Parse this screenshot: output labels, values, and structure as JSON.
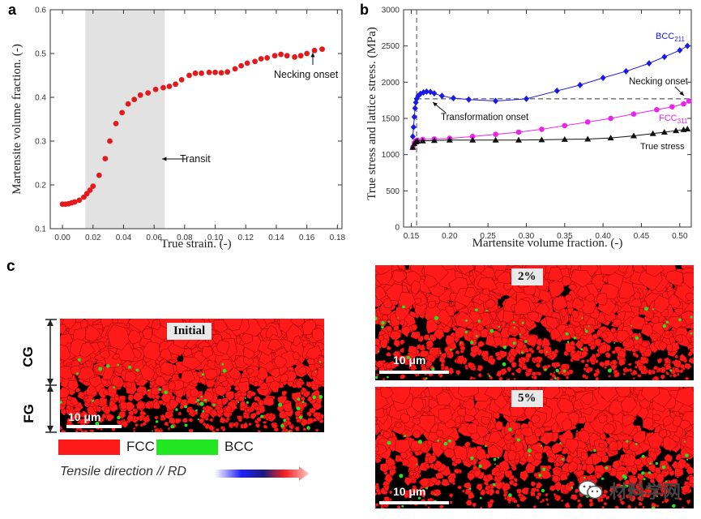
{
  "panels": {
    "a": "a",
    "b": "b",
    "c": "c"
  },
  "colors": {
    "fcc": "#ff1a1a",
    "bcc": "#22e622",
    "marker_red": "#e31a1c",
    "marker_blue": "#1a1ae6",
    "marker_magenta": "#ee22ee",
    "marker_black": "#111111"
  },
  "chart_data": [
    {
      "type": "scatter",
      "panel": "a",
      "xlabel": "True strain. (-)",
      "ylabel": "Martensite volume fraction. (-)",
      "xlim": [
        -0.008,
        0.183
      ],
      "ylim": [
        0.1,
        0.6
      ],
      "xticks": [
        0.0,
        0.02,
        0.04,
        0.06,
        0.08,
        0.1,
        0.12,
        0.14,
        0.16,
        0.18
      ],
      "xtick_labels": [
        "0.00",
        "0.02",
        "0.04",
        "0.06",
        "0.08",
        "0.10",
        "0.12",
        "0.14",
        "0.16",
        "0.18"
      ],
      "yticks": [
        0.1,
        0.2,
        0.3,
        0.4,
        0.5,
        0.6
      ],
      "ytick_labels": [
        "0.1",
        "0.2",
        "0.3",
        "0.4",
        "0.5",
        "0.6"
      ],
      "shaded_region": [
        0.015,
        0.067
      ],
      "annotations": {
        "transit": "Transit",
        "necking": "Necking onset"
      },
      "x": [
        0.0,
        0.002,
        0.004,
        0.006,
        0.008,
        0.011,
        0.014,
        0.016,
        0.018,
        0.02,
        0.024,
        0.028,
        0.031,
        0.035,
        0.039,
        0.043,
        0.047,
        0.051,
        0.056,
        0.061,
        0.066,
        0.07,
        0.074,
        0.078,
        0.083,
        0.087,
        0.091,
        0.096,
        0.1,
        0.104,
        0.108,
        0.113,
        0.117,
        0.121,
        0.126,
        0.13,
        0.134,
        0.139,
        0.143,
        0.147,
        0.152,
        0.156,
        0.16,
        0.165,
        0.17
      ],
      "y": [
        0.156,
        0.156,
        0.157,
        0.159,
        0.161,
        0.165,
        0.172,
        0.18,
        0.188,
        0.197,
        0.222,
        0.26,
        0.3,
        0.34,
        0.365,
        0.385,
        0.395,
        0.405,
        0.41,
        0.418,
        0.422,
        0.425,
        0.43,
        0.44,
        0.45,
        0.455,
        0.455,
        0.457,
        0.457,
        0.456,
        0.458,
        0.465,
        0.472,
        0.478,
        0.482,
        0.488,
        0.49,
        0.495,
        0.498,
        0.495,
        0.492,
        0.495,
        0.5,
        0.507,
        0.51
      ]
    },
    {
      "type": "line",
      "panel": "b",
      "xlabel": "Martensite volume fraction. (-)",
      "ylabel": "True stress and lattice stress. (MPa)",
      "xlim": [
        0.14,
        0.515
      ],
      "ylim": [
        0,
        3000
      ],
      "xticks": [
        0.15,
        0.2,
        0.25,
        0.3,
        0.35,
        0.4,
        0.45,
        0.5
      ],
      "xtick_labels": [
        "0.15",
        "0.20",
        "0.25",
        "0.30",
        "0.35",
        "0.40",
        "0.45",
        "0.50"
      ],
      "yticks": [
        0,
        500,
        1000,
        1500,
        2000,
        2500,
        3000
      ],
      "ytick_labels": [
        "0",
        "500",
        "1000",
        "1500",
        "2000",
        "2500",
        "3000"
      ],
      "dashed_vertical_x": 0.157,
      "dashed_horizontal_y": 1770,
      "annotations": {
        "necking": "Necking onset",
        "transformation": "Transformation onset",
        "true_stress": "True stress"
      },
      "series": [
        {
          "name": "BCC211",
          "label_main": "BCC",
          "label_sub": "211",
          "color": "#1a1ae6",
          "marker": "diamond",
          "x": [
            0.152,
            0.153,
            0.154,
            0.155,
            0.156,
            0.157,
            0.159,
            0.162,
            0.166,
            0.17,
            0.175,
            0.18,
            0.19,
            0.205,
            0.225,
            0.26,
            0.3,
            0.34,
            0.37,
            0.4,
            0.43,
            0.46,
            0.48,
            0.5,
            0.51
          ],
          "y": [
            1250,
            1380,
            1520,
            1640,
            1720,
            1770,
            1810,
            1840,
            1860,
            1870,
            1865,
            1845,
            1810,
            1780,
            1760,
            1740,
            1770,
            1880,
            1960,
            2060,
            2150,
            2260,
            2350,
            2440,
            2500
          ]
        },
        {
          "name": "FCC311",
          "label_main": "FCC",
          "label_sub": "311",
          "color": "#ee22ee",
          "marker": "circle",
          "x": [
            0.152,
            0.154,
            0.156,
            0.158,
            0.165,
            0.18,
            0.2,
            0.23,
            0.26,
            0.29,
            0.32,
            0.35,
            0.38,
            0.41,
            0.44,
            0.47,
            0.49,
            0.505,
            0.512
          ],
          "y": [
            1100,
            1160,
            1190,
            1200,
            1210,
            1215,
            1225,
            1250,
            1280,
            1310,
            1350,
            1400,
            1450,
            1500,
            1560,
            1620,
            1660,
            1700,
            1740
          ]
        },
        {
          "name": "True stress",
          "color": "#111111",
          "marker": "triangle",
          "x": [
            0.152,
            0.154,
            0.156,
            0.158,
            0.165,
            0.18,
            0.2,
            0.23,
            0.26,
            0.29,
            0.32,
            0.35,
            0.38,
            0.41,
            0.44,
            0.465,
            0.48,
            0.495,
            0.505,
            0.51
          ],
          "y": [
            1100,
            1150,
            1175,
            1185,
            1190,
            1195,
            1200,
            1200,
            1200,
            1200,
            1205,
            1210,
            1215,
            1230,
            1260,
            1290,
            1310,
            1330,
            1345,
            1355
          ]
        }
      ]
    }
  ],
  "ebsd": {
    "initial_label": "Initial",
    "strain_2_label": "2%",
    "strain_5_label": "5%",
    "scale_bar_label": "10 μm",
    "cg_label": "CG",
    "fg_label": "FG"
  },
  "legend": {
    "fcc_label": "FCC",
    "bcc_label": "BCC",
    "tensile_label": "Tensile direction // RD"
  },
  "watermark": "材料学网"
}
